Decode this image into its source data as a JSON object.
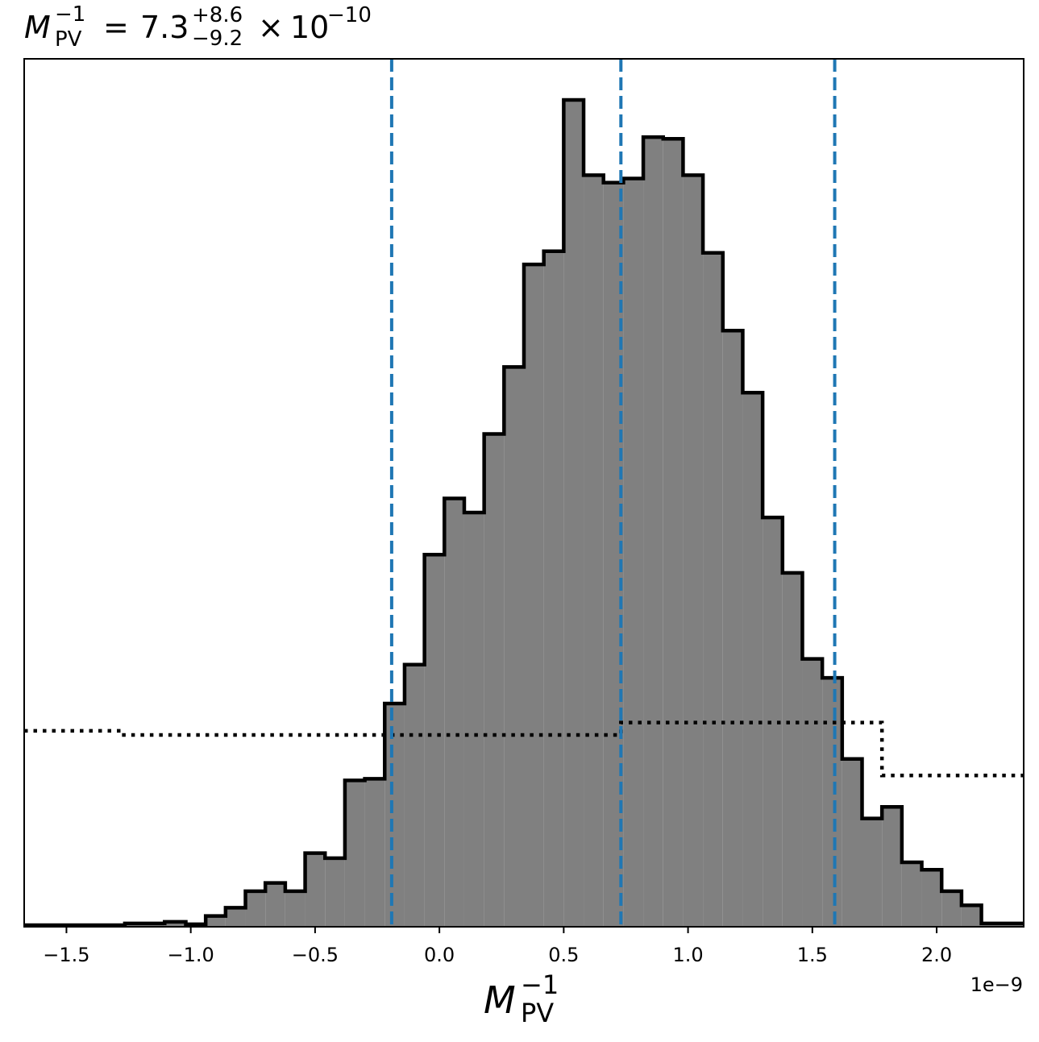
{
  "chart_data": {
    "type": "histogram",
    "title": {
      "symbol": "M",
      "symbol_sub": "PV",
      "symbol_sup": "−1",
      "equals": "=",
      "value": "7.3",
      "err_plus": "+8.6",
      "err_minus": "−9.2",
      "times": "×",
      "mantissa": "10",
      "exponent": "−10"
    },
    "xlabel": {
      "symbol": "M",
      "sub": "PV",
      "sup": "−1"
    },
    "x_offset_label": "1e−9",
    "xlim": [
      -1.67,
      2.35
    ],
    "ylim": [
      0,
      1.0
    ],
    "x_ticks": [
      {
        "value": -1.5,
        "label": "−1.5"
      },
      {
        "value": -1.0,
        "label": "−1.0"
      },
      {
        "value": -0.5,
        "label": "−0.5"
      },
      {
        "value": 0.0,
        "label": "0.0"
      },
      {
        "value": 0.5,
        "label": "0.5"
      },
      {
        "value": 1.0,
        "label": "1.0"
      },
      {
        "value": 1.5,
        "label": "1.5"
      },
      {
        "value": 2.0,
        "label": "2.0"
      }
    ],
    "quantiles": [
      -0.192,
      0.73,
      1.59
    ],
    "posterior": {
      "bin_edges": [
        -1.67,
        -1.265,
        -1.105,
        -1.02,
        -0.94,
        -0.86,
        -0.78,
        -0.7,
        -0.62,
        -0.54,
        -0.46,
        -0.38,
        -0.3,
        -0.22,
        -0.14,
        -0.06,
        0.02,
        0.1,
        0.18,
        0.26,
        0.34,
        0.42,
        0.5,
        0.58,
        0.66,
        0.74,
        0.82,
        0.9,
        0.98,
        1.06,
        1.14,
        1.22,
        1.3,
        1.38,
        1.46,
        1.54,
        1.62,
        1.7,
        1.78,
        1.86,
        1.94,
        2.02,
        2.1,
        2.18,
        2.35
      ],
      "values": [
        0.002,
        0.004,
        0.006,
        0.003,
        0.013,
        0.023,
        0.043,
        0.053,
        0.043,
        0.089,
        0.083,
        0.177,
        0.179,
        0.27,
        0.317,
        0.45,
        0.518,
        0.501,
        0.596,
        0.677,
        0.801,
        0.817,
        1.0,
        0.909,
        0.9,
        0.905,
        0.955,
        0.953,
        0.909,
        0.815,
        0.721,
        0.646,
        0.495,
        0.428,
        0.324,
        0.301,
        0.203,
        0.131,
        0.145,
        0.078,
        0.069,
        0.043,
        0.026,
        0.004
      ]
    },
    "prior": {
      "bin_edges": [
        -1.67,
        -1.28,
        0.73,
        1.78,
        2.35
      ],
      "values": [
        0.237,
        0.232,
        0.247,
        0.183
      ]
    },
    "colors": {
      "posterior_fill": "#808080",
      "posterior_edge": "#000000",
      "quantile_line": "#1f77b4",
      "prior_line": "#000000"
    }
  }
}
